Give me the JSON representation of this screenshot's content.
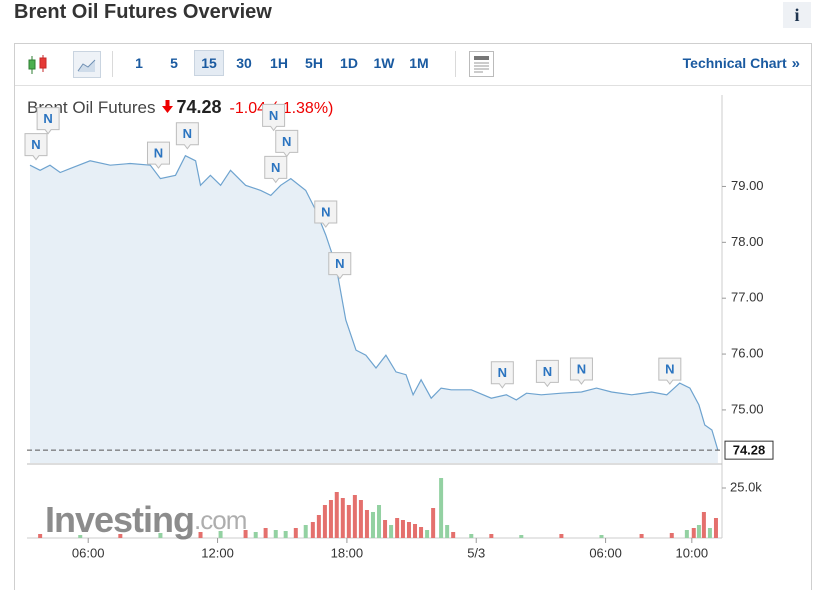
{
  "header": {
    "title": "Brent Oil Futures Overview",
    "info_icon": "i"
  },
  "toolbar": {
    "intervals": [
      "1",
      "5",
      "15",
      "30",
      "1H",
      "5H",
      "1D",
      "1W",
      "1M"
    ],
    "active": "15",
    "link": "Technical Chart",
    "link_arrow": "»"
  },
  "quote": {
    "name": "Brent Oil Futures",
    "price": 74.28,
    "change": -1.04,
    "change_pct": {
      "value": -1.38,
      "label": "(-1.38%)"
    }
  },
  "watermark": {
    "brand": "Investing",
    "suffix": ".com"
  },
  "chart_data": {
    "type": "area",
    "color": "#6ea3cf",
    "fill_color": "#e3ecf5",
    "grid": false,
    "x": [
      3.3,
      3.77,
      4.23,
      4.7,
      5.16,
      6.09,
      7.02,
      7.95,
      8.88,
      9.35,
      10.05,
      10.51,
      10.98,
      11.21,
      11.67,
      12.14,
      12.6,
      13.3,
      14.0,
      14.47,
      14.93,
      15.4,
      16.09,
      16.56,
      17.02,
      17.49,
      17.95,
      18.42,
      18.88,
      19.35,
      19.81,
      20.28,
      20.74,
      21.07,
      21.44,
      21.91,
      22.37,
      22.84,
      23.77,
      24.7,
      25.4,
      25.86,
      26.33,
      27.02,
      27.95,
      28.88,
      29.58,
      30.28,
      31.21,
      32.14,
      32.84,
      33.44,
      33.91,
      34.33,
      34.6,
      34.93,
      35.21
    ],
    "values": [
      79.38,
      79.29,
      79.38,
      79.25,
      79.32,
      79.46,
      79.38,
      79.41,
      79.38,
      79.14,
      79.2,
      79.55,
      79.46,
      79.02,
      79.2,
      79.02,
      79.29,
      79.02,
      78.93,
      78.84,
      79.02,
      79.14,
      78.93,
      78.57,
      78.13,
      77.59,
      76.61,
      76.07,
      75.98,
      75.75,
      75.98,
      75.68,
      75.63,
      75.27,
      75.54,
      75.21,
      75.39,
      75.36,
      75.36,
      75.21,
      75.27,
      75.18,
      75.3,
      75.27,
      75.3,
      75.32,
      75.39,
      75.32,
      75.27,
      75.32,
      75.27,
      75.48,
      75.39,
      75.09,
      74.73,
      74.64,
      74.28
    ],
    "xlim": [
      3.3,
      35.4
    ],
    "xticks": [
      {
        "value": 6,
        "label": "06:00"
      },
      {
        "value": 12,
        "label": "12:00"
      },
      {
        "value": 18,
        "label": "18:00"
      },
      {
        "value": 24,
        "label": "5/3"
      },
      {
        "value": 30,
        "label": "06:00"
      },
      {
        "value": 34,
        "label": "10:00"
      }
    ],
    "ylim": [
      74.05,
      80.1
    ],
    "yticks": [
      {
        "value": 75,
        "label": "75.00"
      },
      {
        "value": 76,
        "label": "76.00"
      },
      {
        "value": 77,
        "label": "77.00"
      },
      {
        "value": 78,
        "label": "78.00"
      },
      {
        "value": 79,
        "label": "79.00"
      }
    ],
    "y2lim": [
      0,
      34000
    ],
    "y2ticks": [
      {
        "value": 25000,
        "label": "25.0k"
      }
    ],
    "volume": {
      "x": [
        3.77,
        5.63,
        7.49,
        9.35,
        11.21,
        12.14,
        13.3,
        13.77,
        14.23,
        14.7,
        15.16,
        15.63,
        16.09,
        16.42,
        16.7,
        16.98,
        17.26,
        17.53,
        17.81,
        18.09,
        18.37,
        18.65,
        18.93,
        19.21,
        19.49,
        19.77,
        20.05,
        20.33,
        20.6,
        20.88,
        21.16,
        21.44,
        21.72,
        22.0,
        22.37,
        22.65,
        22.93,
        23.77,
        24.7,
        26.09,
        27.95,
        29.81,
        31.67,
        33.07,
        33.77,
        34.09,
        34.33,
        34.56,
        34.84,
        35.12
      ],
      "values": [
        2000,
        1500,
        2000,
        2500,
        3000,
        3500,
        4000,
        3000,
        5000,
        4000,
        3500,
        5000,
        6500,
        8000,
        11500,
        16500,
        19000,
        23000,
        20000,
        16500,
        21500,
        19000,
        14000,
        13000,
        16500,
        9000,
        6500,
        10000,
        9000,
        8000,
        7000,
        5500,
        4000,
        15000,
        30000,
        6500,
        3000,
        2000,
        2000,
        1500,
        2000,
        1500,
        2000,
        2500,
        4000,
        5000,
        6500,
        13000,
        5000,
        10000
      ],
      "colors": [
        "#e4706d",
        "#93d1a2",
        "#e4706d",
        "#93d1a2",
        "#e4706d",
        "#93d1a2",
        "#e4706d",
        "#93d1a2",
        "#e4706d",
        "#93d1a2",
        "#93d1a2",
        "#e4706d",
        "#93d1a2",
        "#e4706d",
        "#e4706d",
        "#e4706d",
        "#e4706d",
        "#e4706d",
        "#e4706d",
        "#e4706d",
        "#e4706d",
        "#e4706d",
        "#e4706d",
        "#93d1a2",
        "#93d1a2",
        "#e4706d",
        "#93d1a2",
        "#e4706d",
        "#e4706d",
        "#e4706d",
        "#e4706d",
        "#e4706d",
        "#93d1a2",
        "#e4706d",
        "#93d1a2",
        "#93d1a2",
        "#e4706d",
        "#93d1a2",
        "#e4706d",
        "#93d1a2",
        "#e4706d",
        "#93d1a2",
        "#e4706d",
        "#e4706d",
        "#93d1a2",
        "#e4706d",
        "#93d1a2",
        "#e4706d",
        "#93d1a2",
        "#e4706d"
      ]
    },
    "news_markers": [
      {
        "label": "N",
        "x": 3.53
      },
      {
        "label": "N",
        "x": 4.14
      },
      {
        "label": "N",
        "x": 9.26
      },
      {
        "label": "N",
        "x": 10.6
      },
      {
        "label": "N",
        "x": 14.7
      },
      {
        "label": "N",
        "x": 15.21
      },
      {
        "label": "N",
        "x": 14.6
      },
      {
        "label": "N",
        "x": 17.02
      },
      {
        "label": "N",
        "x": 17.67
      },
      {
        "label": "N",
        "x": 25.21
      },
      {
        "label": "N",
        "x": 27.3
      },
      {
        "label": "N",
        "x": 28.88
      },
      {
        "label": "N",
        "x": 32.98
      }
    ]
  }
}
